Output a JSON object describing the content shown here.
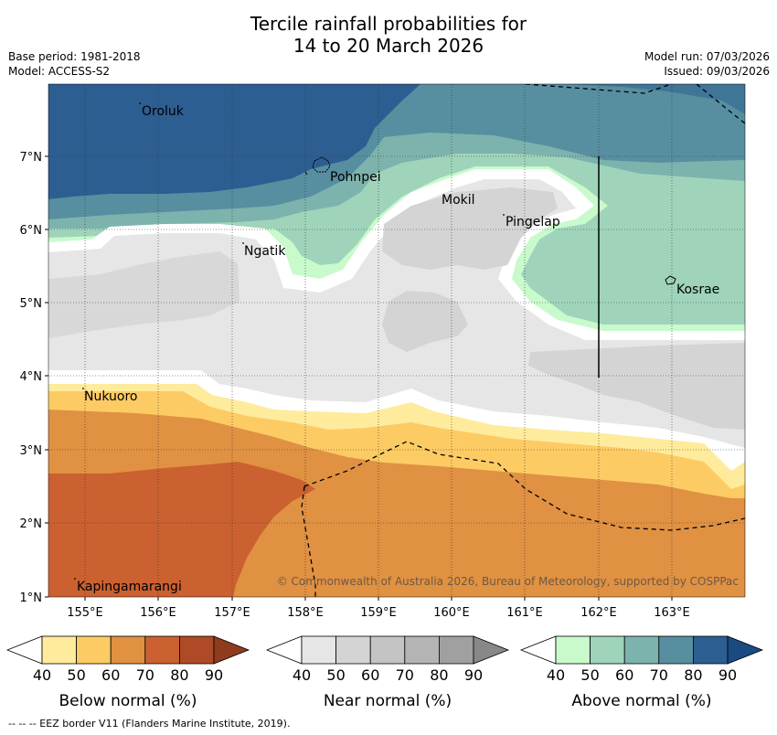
{
  "title_line1": "Tercile rainfall probabilities for",
  "title_line2": "14 to 20 March 2026",
  "base_period": "Base period: 1981-2018",
  "model": "Model: ACCESS-S2",
  "model_run": "Model run: 07/03/2026",
  "issued": "Issued: 09/03/2026",
  "copyright": "© Commonwealth of Australia 2026, Bureau of Meteorology, supported by COSPPac",
  "lat_ticks": [
    "7°N",
    "6°N",
    "5°N",
    "4°N",
    "3°N",
    "2°N",
    "1°N"
  ],
  "lon_ticks": [
    "155°E",
    "156°E",
    "157°E",
    "158°E",
    "159°E",
    "160°E",
    "161°E",
    "162°E",
    "163°E"
  ],
  "places": [
    {
      "name": "Oroluk"
    },
    {
      "name": "Pohnpei"
    },
    {
      "name": "Mokil"
    },
    {
      "name": "Pingelap"
    },
    {
      "name": "Ngatik"
    },
    {
      "name": "Kosrae"
    },
    {
      "name": "Nukuoro"
    },
    {
      "name": "Kapingamarangi"
    }
  ],
  "legends": {
    "below": {
      "label": "Below normal (%)",
      "ticks": [
        "40",
        "50",
        "60",
        "70",
        "80",
        "90"
      ],
      "colors": [
        "#ffffff",
        "#ffeb9c",
        "#fdcb64",
        "#e09142",
        "#cb6030",
        "#ae4a26",
        "#8f3c1e"
      ]
    },
    "near": {
      "label": "Near normal (%)",
      "ticks": [
        "40",
        "50",
        "60",
        "70",
        "80",
        "90"
      ],
      "colors": [
        "#ffffff",
        "#e6e6e6",
        "#d4d4d4",
        "#c4c4c4",
        "#b4b4b4",
        "#a0a0a0",
        "#888888"
      ]
    },
    "above": {
      "label": "Above normal (%)",
      "ticks": [
        "40",
        "50",
        "60",
        "70",
        "80",
        "90"
      ],
      "colors": [
        "#ffffff",
        "#c8facc",
        "#9fd4bb",
        "#7db3ad",
        "#578fa1",
        "#2d5e91",
        "#1b4a80"
      ]
    }
  },
  "footnote": "--  --  -- EEZ border V11 (Flanders Marine Institute, 2019)."
}
